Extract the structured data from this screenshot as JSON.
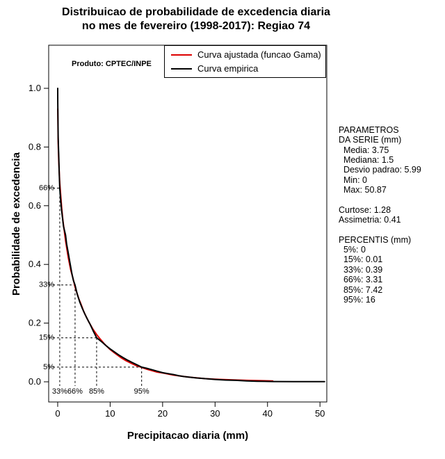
{
  "title": {
    "line1": "Distribuicao de probabilidade de excedencia diaria",
    "line2": "no mes de fevereiro (1998-2017): Regiao 74"
  },
  "plot_note": "Produto: CPTEC/INPE",
  "legend": {
    "items": [
      {
        "label": "Curva ajustada (funcao Gama)",
        "color": "#dd0000"
      },
      {
        "label": "Curva empirica",
        "color": "#000000"
      }
    ]
  },
  "stats_panel": {
    "lines": [
      "PARAMETROS",
      "DA SERIE (mm)",
      "  Media: 3.75",
      "  Mediana: 1.5",
      "  Desvio padrao: 5.99",
      "  Min: 0",
      "  Max: 50.87",
      "",
      "Curtose: 1.28",
      "Assimetria: 0.41",
      "",
      "PERCENTIS (mm)",
      "  5%: 0",
      "  15%: 0.01",
      "  33%: 0.39",
      "  66%: 3.31",
      "  85%: 7.42",
      "  95%: 16"
    ]
  },
  "chart_data": {
    "type": "line",
    "title": "Distribuicao de probabilidade de excedencia diaria no mes de fevereiro (1998-2017): Regiao 74",
    "xlabel": "Precipitacao diaria (mm)",
    "ylabel": "Probabilidade de excedencia",
    "xlim": [
      0,
      50.87
    ],
    "ylim": [
      0,
      1.0
    ],
    "grid": false,
    "legend_position": "top-right",
    "xticks": [
      0,
      10,
      20,
      30,
      40,
      50
    ],
    "xtick_labels": [
      "0",
      "10",
      "20",
      "30",
      "40",
      "50"
    ],
    "yticks": [
      0,
      0.2,
      0.4,
      0.6,
      0.8,
      1.0
    ],
    "ytick_labels": [
      "0.0",
      "0.2",
      "0.4",
      "0.6",
      "0.8",
      "1.0"
    ],
    "parameters": {
      "media": 3.75,
      "mediana": 1.5,
      "desvio_padrao": 5.99,
      "min": 0,
      "max": 50.87,
      "curtose": 1.28,
      "assimetria": 0.41
    },
    "percentis": {
      "5%": 0,
      "15%": 0.01,
      "33%": 0.39,
      "66%": 3.31,
      "85%": 7.42,
      "95%": 16
    },
    "percentile_markers": [
      {
        "percentile": "33%",
        "exceedance_label": "66%",
        "exceedance": 0.66,
        "x": 0.39
      },
      {
        "percentile": "66%",
        "exceedance_label": "33%",
        "exceedance": 0.33,
        "x": 3.31
      },
      {
        "percentile": "85%",
        "exceedance_label": "15%",
        "exceedance": 0.15,
        "x": 7.42
      },
      {
        "percentile": "95%",
        "exceedance_label": "5%",
        "exceedance": 0.05,
        "x": 16
      }
    ],
    "series": [
      {
        "id": "gamma",
        "name": "Curva ajustada (funcao Gama)",
        "color": "#dd0000",
        "points": [
          [
            0.01,
            0.93
          ],
          [
            0.05,
            0.86
          ],
          [
            0.1,
            0.81
          ],
          [
            0.2,
            0.75
          ],
          [
            0.39,
            0.68
          ],
          [
            0.6,
            0.63
          ],
          [
            0.8,
            0.585
          ],
          [
            1,
            0.55
          ],
          [
            1.25,
            0.515
          ],
          [
            1.5,
            0.48
          ],
          [
            2,
            0.424
          ],
          [
            2.5,
            0.38
          ],
          [
            3,
            0.347
          ],
          [
            3.31,
            0.323
          ],
          [
            4,
            0.284
          ],
          [
            4.5,
            0.262
          ],
          [
            5,
            0.238
          ],
          [
            5.5,
            0.219
          ],
          [
            6,
            0.202
          ],
          [
            6.7,
            0.18
          ],
          [
            7.42,
            0.161
          ],
          [
            8,
            0.148
          ],
          [
            9,
            0.127
          ],
          [
            10,
            0.11
          ],
          [
            11,
            0.096
          ],
          [
            12,
            0.083
          ],
          [
            13,
            0.072
          ],
          [
            14,
            0.063
          ],
          [
            15,
            0.055
          ],
          [
            16,
            0.049
          ],
          [
            17,
            0.043
          ],
          [
            18,
            0.038
          ],
          [
            19,
            0.033
          ],
          [
            20,
            0.03
          ],
          [
            22,
            0.023
          ],
          [
            25,
            0.016
          ],
          [
            28,
            0.011
          ],
          [
            30,
            0.009
          ],
          [
            33,
            0.007
          ],
          [
            36,
            0.005
          ],
          [
            41,
            0.003
          ]
        ]
      },
      {
        "id": "empirica",
        "name": "Curva empirica",
        "color": "#000000",
        "points": [
          [
            0,
            1.0
          ],
          [
            0.02,
            0.95
          ],
          [
            0.1,
            0.83
          ],
          [
            0.2,
            0.77
          ],
          [
            0.3,
            0.71
          ],
          [
            0.39,
            0.66
          ],
          [
            0.5,
            0.635
          ],
          [
            0.7,
            0.59
          ],
          [
            0.9,
            0.56
          ],
          [
            1.1,
            0.53
          ],
          [
            1.5,
            0.5
          ],
          [
            1.7,
            0.47
          ],
          [
            2,
            0.44
          ],
          [
            2.3,
            0.41
          ],
          [
            2.7,
            0.37
          ],
          [
            3,
            0.345
          ],
          [
            3.31,
            0.33
          ],
          [
            3.7,
            0.3
          ],
          [
            4.2,
            0.272
          ],
          [
            4.7,
            0.25
          ],
          [
            5.2,
            0.23
          ],
          [
            5.7,
            0.212
          ],
          [
            6.2,
            0.195
          ],
          [
            6.8,
            0.172
          ],
          [
            7.42,
            0.15
          ],
          [
            8,
            0.142
          ],
          [
            8.6,
            0.133
          ],
          [
            9.3,
            0.122
          ],
          [
            10,
            0.112
          ],
          [
            10.8,
            0.102
          ],
          [
            11.6,
            0.092
          ],
          [
            12.5,
            0.082
          ],
          [
            13.4,
            0.073
          ],
          [
            14.3,
            0.065
          ],
          [
            15.1,
            0.058
          ],
          [
            16,
            0.05
          ],
          [
            17,
            0.046
          ],
          [
            18,
            0.041
          ],
          [
            19,
            0.036
          ],
          [
            20,
            0.031
          ],
          [
            21,
            0.028
          ],
          [
            22,
            0.025
          ],
          [
            23,
            0.021
          ],
          [
            24,
            0.018
          ],
          [
            25,
            0.016
          ],
          [
            26.5,
            0.013
          ],
          [
            28,
            0.011
          ],
          [
            30,
            0.008
          ],
          [
            32,
            0.006
          ],
          [
            34,
            0.005
          ],
          [
            36,
            0.003
          ],
          [
            38,
            0.002
          ],
          [
            41,
            0.001
          ],
          [
            45,
            0.0005
          ],
          [
            50.87,
            0.0005
          ]
        ]
      }
    ]
  }
}
